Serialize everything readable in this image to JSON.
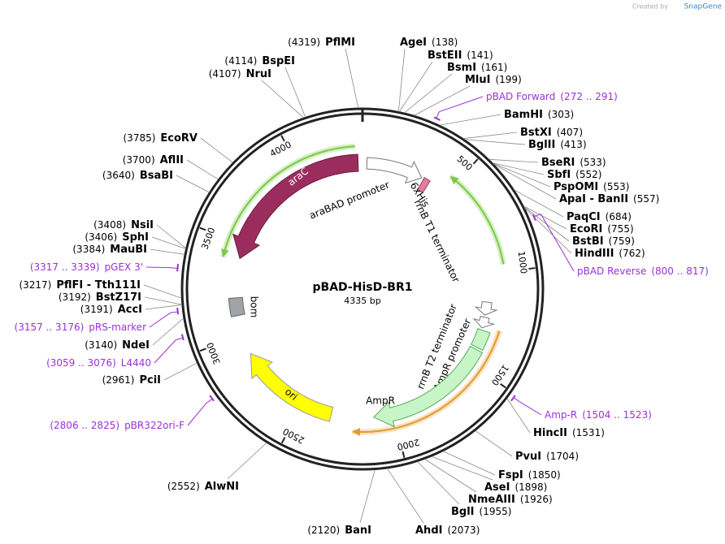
{
  "header": {
    "credit": "Created by",
    "brand": "SnapGene"
  },
  "map": {
    "name": "pBAD-HisD-BR1",
    "length": "4335 bp",
    "scale": [
      500,
      1000,
      1500,
      2000,
      2500,
      3000,
      3500,
      4000
    ]
  },
  "sites": [
    {
      "name": "PflMI",
      "position": "(4319)"
    },
    {
      "name": "BspEI",
      "position": "(4114)"
    },
    {
      "name": "NruI",
      "position": "(4107)"
    },
    {
      "name": "EcoRV",
      "position": "(3785)"
    },
    {
      "name": "AflII",
      "position": "(3700)"
    },
    {
      "name": "BsaBI",
      "position": "(3640)"
    },
    {
      "name": "NsiI",
      "position": "(3408)"
    },
    {
      "name": "SphI",
      "position": "(3406)"
    },
    {
      "name": "MauBI",
      "position": "(3384)"
    },
    {
      "name": "PflFI - Tth111I",
      "position": "(3217)"
    },
    {
      "name": "BstZ17I",
      "position": "(3192)"
    },
    {
      "name": "AccI",
      "position": "(3191)"
    },
    {
      "name": "NdeI",
      "position": "(3140)"
    },
    {
      "name": "PciI",
      "position": "(2961)"
    },
    {
      "name": "AlwNI",
      "position": "(2552)"
    },
    {
      "name": "BanI",
      "position": "(2120)"
    },
    {
      "name": "AgeI",
      "position": "(138)"
    },
    {
      "name": "BstEII",
      "position": "(141)"
    },
    {
      "name": "BsmI",
      "position": "(161)"
    },
    {
      "name": "MluI",
      "position": "(199)"
    },
    {
      "name": "BamHI",
      "position": "(303)"
    },
    {
      "name": "BstXI",
      "position": "(407)"
    },
    {
      "name": "BglII",
      "position": "(413)"
    },
    {
      "name": "BseRI",
      "position": "(533)"
    },
    {
      "name": "SbfI",
      "position": "(552)"
    },
    {
      "name": "PspOMI",
      "position": "(553)"
    },
    {
      "name": "ApaI - BanII",
      "position": "(557)"
    },
    {
      "name": "PaqCI",
      "position": "(684)"
    },
    {
      "name": "EcoRI",
      "position": "(755)"
    },
    {
      "name": "BstBI",
      "position": "(759)"
    },
    {
      "name": "HindIII",
      "position": "(762)"
    },
    {
      "name": "HincII",
      "position": "(1531)"
    },
    {
      "name": "PvuI",
      "position": "(1704)"
    },
    {
      "name": "FspI",
      "position": "(1850)"
    },
    {
      "name": "AseI",
      "position": "(1898)"
    },
    {
      "name": "NmeAIII",
      "position": "(1926)"
    },
    {
      "name": "BglI",
      "position": "(1955)"
    },
    {
      "name": "AhdI",
      "position": "(2073)"
    }
  ],
  "primers": [
    {
      "name": "pBAD Forward",
      "range": "(272 .. 291)"
    },
    {
      "name": "pBAD Reverse",
      "range": "(800 .. 817)"
    },
    {
      "name": "Amp-R",
      "range": "(1504 .. 1523)"
    },
    {
      "name": "pGEX 3'",
      "range": "(3317 .. 3339)"
    },
    {
      "name": "pRS-marker",
      "range": "(3157 .. 3176)"
    },
    {
      "name": "L4440",
      "range": "(3059 .. 3076)"
    },
    {
      "name": "pBR322ori-F",
      "range": "(2806 .. 2825)"
    }
  ],
  "features": [
    {
      "label": "araC"
    },
    {
      "label": "araBAD promoter"
    },
    {
      "label": "6xHis"
    },
    {
      "label": "rrnB T1 terminator"
    },
    {
      "label": "rrnB T2 terminator"
    },
    {
      "label": "AmpR promoter"
    },
    {
      "label": "AmpR"
    },
    {
      "label": "ori"
    },
    {
      "label": "bom"
    }
  ]
}
